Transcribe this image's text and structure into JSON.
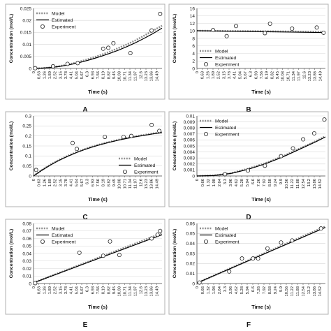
{
  "chart_data": [
    {
      "panel": "A",
      "type": "line",
      "ylabel": "Concentration (mol/L)",
      "xlabel": "Time (s)",
      "yticks": [
        "0",
        "0.005",
        "0.01",
        "0.015",
        "0.02",
        "0.025"
      ],
      "ylim": [
        0,
        0.025
      ],
      "xlim": [
        0,
        15.12
      ],
      "xticks": [
        "0",
        "0.63",
        "1.26",
        "1.89",
        "2.52",
        "3.15",
        "3.78",
        "4.41",
        "5.04",
        "5.67",
        "6.3",
        "6.93",
        "7.56",
        "8.19",
        "8.82",
        "9.45",
        "10.08",
        "10.71",
        "11.34",
        "11.97",
        "12.6",
        "13.23",
        "13.86",
        "14.49"
      ],
      "legend": {
        "position": "top-left",
        "entries": [
          "Model",
          "Estimated",
          "Experiment"
        ]
      },
      "series": [
        {
          "name": "Model",
          "style": "dotted",
          "x": [
            0,
            1,
            2,
            3,
            4,
            5,
            6,
            7,
            8,
            9,
            10,
            11,
            12,
            13,
            14,
            15.12
          ],
          "y": [
            0,
            0.0001,
            0.0004,
            0.0009,
            0.0016,
            0.0024,
            0.0034,
            0.0045,
            0.0057,
            0.007,
            0.0085,
            0.01,
            0.0117,
            0.0136,
            0.0156,
            0.0178
          ]
        },
        {
          "name": "Estimated",
          "style": "solid",
          "x": [
            0,
            1,
            2,
            3,
            4,
            5,
            6,
            7,
            8,
            9,
            10,
            11,
            12,
            13,
            14,
            15.12
          ],
          "y": [
            0,
            0.0001,
            0.0004,
            0.0008,
            0.0014,
            0.0021,
            0.003,
            0.004,
            0.0051,
            0.0063,
            0.0076,
            0.0091,
            0.0107,
            0.0125,
            0.0144,
            0.0168
          ]
        },
        {
          "name": "Experiment",
          "style": "marker",
          "x": [
            0.2,
            2.3,
            4.0,
            5.2,
            8.2,
            8.8,
            9.4,
            11.4,
            13.9,
            14.9
          ],
          "y": [
            0.0001,
            0.0009,
            0.0019,
            0.0022,
            0.0082,
            0.0086,
            0.0105,
            0.0064,
            0.0158,
            0.0227
          ]
        }
      ]
    },
    {
      "panel": "B",
      "type": "line",
      "ylabel": "Concentration (mol/L)",
      "xlabel": "Time (s)",
      "yticks": [
        "0",
        "2",
        "4",
        "6",
        "8",
        "10",
        "12",
        "14",
        "16"
      ],
      "ylim": [
        0,
        16
      ],
      "xlim": [
        0,
        15.12
      ],
      "xticks": [
        "0",
        "0.63",
        "1.26",
        "1.89",
        "2.52",
        "3.15",
        "3.78",
        "4.41",
        "5.04",
        "5.67",
        "6.3",
        "6.93",
        "7.56",
        "8.19",
        "8.82",
        "9.45",
        "10.08",
        "10.71",
        "11.34",
        "11.97",
        "12.6",
        "13.23",
        "13.86",
        "14.49"
      ],
      "legend": {
        "position": "bottom-left",
        "entries": [
          "Model",
          "Estimated",
          "Experiment"
        ]
      },
      "series": [
        {
          "name": "Model",
          "style": "dotted",
          "x": [
            0,
            15.12
          ],
          "y": [
            10.05,
            9.75
          ]
        },
        {
          "name": "Estimated",
          "style": "solid",
          "x": [
            0,
            15.12
          ],
          "y": [
            10.05,
            9.55
          ]
        },
        {
          "name": "Experiment",
          "style": "marker",
          "x": [
            1.9,
            3.5,
            4.6,
            8.0,
            8.6,
            11.2,
            14.1,
            14.9
          ],
          "y": [
            10.2,
            8.6,
            11.3,
            9.4,
            11.9,
            10.6,
            10.9,
            9.5
          ]
        }
      ]
    },
    {
      "panel": "C",
      "type": "line",
      "ylabel": "Concentration (mol/L)",
      "xlabel": "Time (s)",
      "yticks": [
        "0",
        "0.05",
        "0.1",
        "0.15",
        "0.2",
        "0.25",
        "0.3"
      ],
      "ylim": [
        0,
        0.3
      ],
      "xlim": [
        0,
        15.12
      ],
      "xticks": [
        "0",
        "0.63",
        "1.26",
        "1.89",
        "2.52",
        "3.15",
        "3.78",
        "4.41",
        "5.04",
        "5.67",
        "6.3",
        "6.93",
        "7.56",
        "8.19",
        "8.82",
        "9.45",
        "10.08",
        "10.71",
        "11.34",
        "11.97",
        "12.6",
        "13.23",
        "13.86",
        "14.49"
      ],
      "legend": {
        "position": "bottom-right",
        "entries": [
          "Model",
          "Estimated",
          "Experiment"
        ]
      },
      "series": [
        {
          "name": "Model",
          "style": "dotted",
          "x": [
            0,
            1,
            2,
            3,
            4,
            5,
            6,
            7,
            8,
            9,
            10,
            11,
            12,
            13,
            14,
            15.12
          ],
          "y": [
            0,
            0.03,
            0.057,
            0.08,
            0.1,
            0.118,
            0.134,
            0.148,
            0.16,
            0.171,
            0.181,
            0.19,
            0.198,
            0.205,
            0.212,
            0.219
          ]
        },
        {
          "name": "Estimated",
          "style": "solid",
          "x": [
            0,
            1,
            2,
            3,
            4,
            5,
            6,
            7,
            8,
            9,
            10,
            11,
            12,
            13,
            14,
            15.12
          ],
          "y": [
            0,
            0.029,
            0.055,
            0.078,
            0.098,
            0.116,
            0.132,
            0.146,
            0.158,
            0.169,
            0.179,
            0.188,
            0.196,
            0.203,
            0.21,
            0.216
          ]
        },
        {
          "name": "Experiment",
          "style": "marker",
          "x": [
            0.3,
            4.6,
            5.1,
            8.4,
            10.6,
            11.5,
            13.9,
            14.8
          ],
          "y": [
            0.03,
            0.165,
            0.135,
            0.195,
            0.195,
            0.2,
            0.255,
            0.225
          ]
        }
      ]
    },
    {
      "panel": "D",
      "type": "line",
      "ylabel": "Concentration (mol/L)",
      "xlabel": "Time (s)",
      "yticks": [
        "0",
        "0.001",
        "0.002",
        "0.003",
        "0.004",
        "0.005",
        "0.006",
        "0.007",
        "0.008",
        "0.009",
        "0.01"
      ],
      "ylim": [
        0,
        0.01
      ],
      "xlim": [
        0,
        15.12
      ],
      "xticks": [
        "0",
        "0.66",
        "1.32",
        "1.98",
        "2.64",
        "3.3",
        "3.96",
        "4.62",
        "5.28",
        "5.94",
        "6.6",
        "7.26",
        "7.92",
        "8.58",
        "9.24",
        "9.9",
        "10.56",
        "11.22",
        "11.88",
        "12.54",
        "13.2",
        "13.86",
        "14.52"
      ],
      "legend": {
        "position": "top-left",
        "entries": [
          "Model",
          "Estimated",
          "Experiment"
        ]
      },
      "series": [
        {
          "name": "Model",
          "style": "dotted",
          "x": [
            0,
            2,
            4,
            6,
            8,
            10,
            12,
            14,
            15.12
          ],
          "y": [
            0,
            8e-05,
            0.00045,
            0.0012,
            0.0021,
            0.0032,
            0.0045,
            0.0058,
            0.0066
          ]
        },
        {
          "name": "Estimated",
          "style": "solid",
          "x": [
            0,
            2,
            4,
            6,
            8,
            10,
            12,
            14,
            15.12
          ],
          "y": [
            0,
            7e-05,
            0.00042,
            0.0011,
            0.002,
            0.0031,
            0.0044,
            0.0057,
            0.0065
          ]
        },
        {
          "name": "Experiment",
          "style": "marker",
          "x": [
            3.3,
            6.0,
            8.0,
            9.9,
            11.3,
            12.5,
            13.8,
            15.0
          ],
          "y": [
            0.0003,
            0.0009,
            0.0017,
            0.0033,
            0.0046,
            0.0061,
            0.0071,
            0.0094
          ]
        }
      ]
    },
    {
      "panel": "E",
      "type": "line",
      "ylabel": "Concentration (mol/L)",
      "xlabel": "Time (s)",
      "yticks": [
        "0",
        "0.01",
        "0.02",
        "0.03",
        "0.04",
        "0.05",
        "0.06",
        "0.07",
        "0.08"
      ],
      "ylim": [
        0,
        0.08
      ],
      "xlim": [
        0,
        15.12
      ],
      "xticks": [
        "0",
        "0.63",
        "1.26",
        "1.89",
        "2.52",
        "3.15",
        "3.78",
        "4.41",
        "5.04",
        "5.67",
        "6.3",
        "6.93",
        "7.56",
        "8.19",
        "8.82",
        "9.45",
        "10.08",
        "10.71",
        "11.34",
        "11.97",
        "12.6",
        "13.23",
        "13.86",
        "14.49"
      ],
      "legend": {
        "position": "top-left",
        "entries": [
          "Model",
          "Estimated",
          "Experiment"
        ]
      },
      "series": [
        {
          "name": "Model",
          "style": "dotted",
          "x": [
            0,
            15.12
          ],
          "y": [
            0.001,
            0.067
          ]
        },
        {
          "name": "Estimated",
          "style": "solid",
          "x": [
            0,
            15.12
          ],
          "y": [
            0.001,
            0.065
          ]
        },
        {
          "name": "Experiment",
          "style": "marker",
          "x": [
            0.2,
            5.4,
            8.2,
            9.0,
            10.1,
            13.9,
            14.6,
            14.9
          ],
          "y": [
            0.0005,
            0.041,
            0.037,
            0.056,
            0.038,
            0.06,
            0.065,
            0.07
          ]
        }
      ]
    },
    {
      "panel": "F",
      "type": "line",
      "ylabel": "Concentration (mol/L)",
      "xlabel": "Time (s)",
      "yticks": [
        "0",
        "0.01",
        "0.02",
        "0.03",
        "0.04",
        "0.05",
        "0.06"
      ],
      "ylim": [
        0,
        0.06
      ],
      "xlim": [
        0,
        15.12
      ],
      "xticks": [
        "0",
        "0.66",
        "1.32",
        "1.98",
        "2.64",
        "3.3",
        "3.96",
        "4.62",
        "5.28",
        "5.94",
        "6.6",
        "7.26",
        "7.92",
        "8.58",
        "9.24",
        "9.9",
        "10.56",
        "11.22",
        "11.88",
        "12.54",
        "13.2",
        "13.86",
        "14.52"
      ],
      "legend": {
        "position": "top-left",
        "entries": [
          "Model",
          "Estimated",
          "Experiment"
        ]
      },
      "series": [
        {
          "name": "Model",
          "style": "dotted",
          "x": [
            0,
            15.12
          ],
          "y": [
            0.0005,
            0.057
          ]
        },
        {
          "name": "Estimated",
          "style": "solid",
          "x": [
            0,
            15.12
          ],
          "y": [
            0.0005,
            0.056
          ]
        },
        {
          "name": "Experiment",
          "style": "marker",
          "x": [
            0.3,
            3.8,
            5.3,
            6.6,
            7.2,
            8.3,
            9.9,
            11.2,
            14.6
          ],
          "y": [
            0.001,
            0.012,
            0.025,
            0.025,
            0.025,
            0.035,
            0.041,
            0.043,
            0.055
          ]
        }
      ]
    }
  ]
}
